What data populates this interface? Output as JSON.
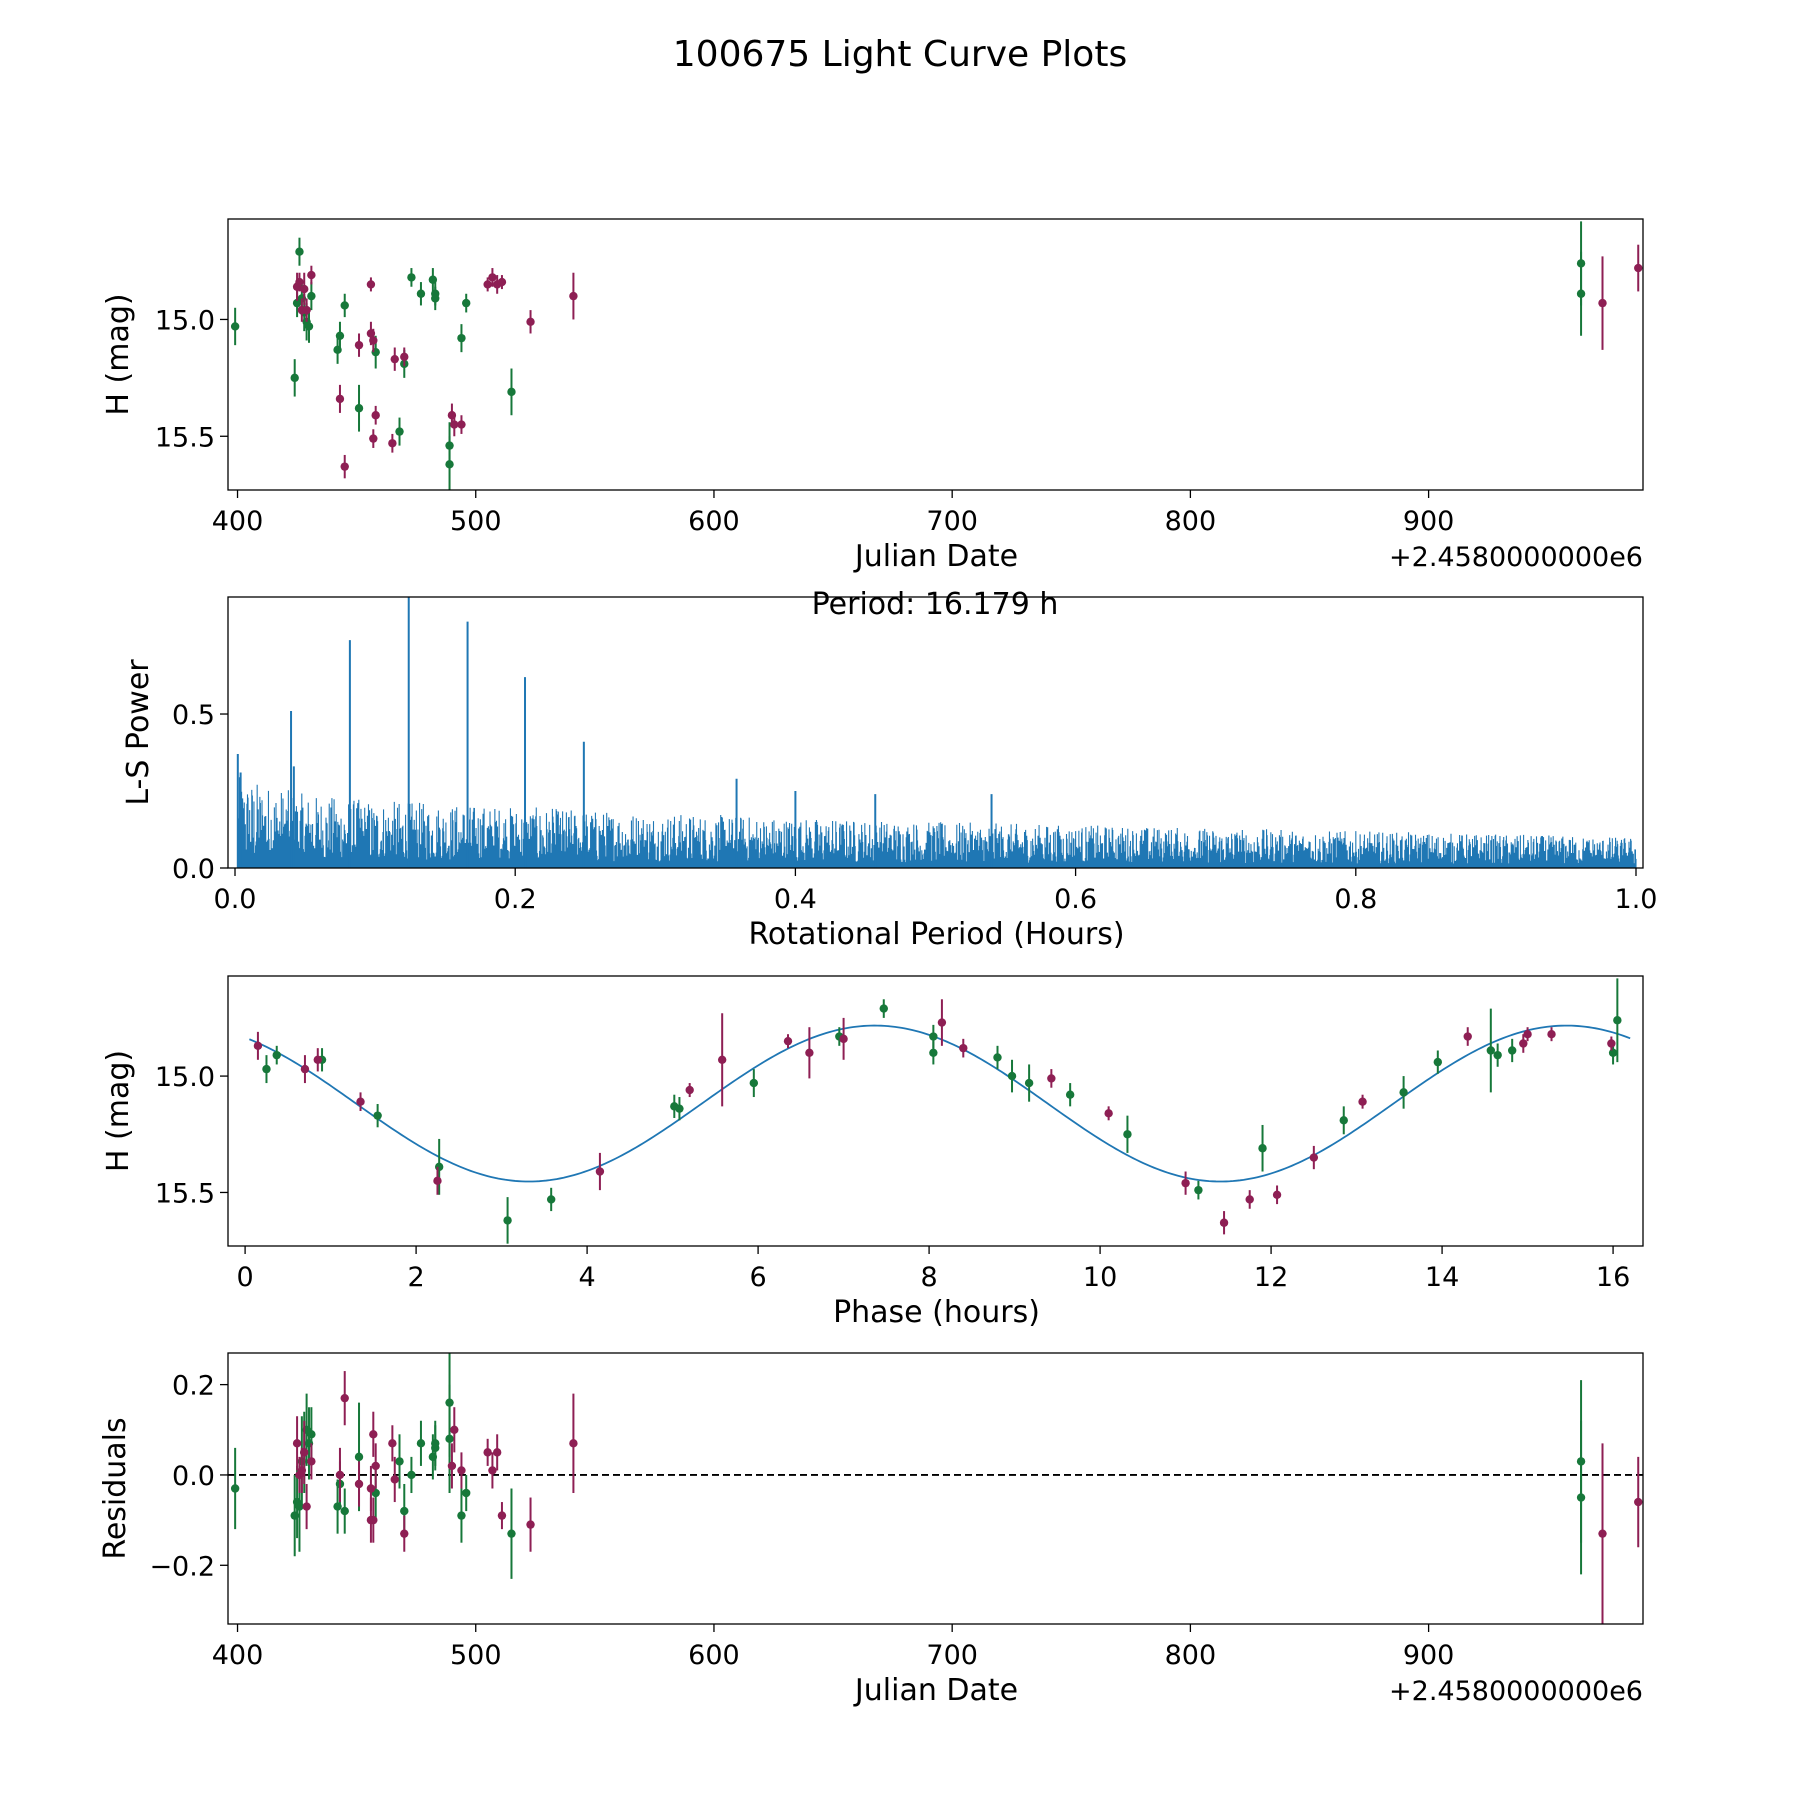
{
  "title": "100675 Light Curve Plots",
  "colors": {
    "green": "#17783a",
    "maroon": "#8e1f54",
    "periodogram": "#1f77b4",
    "fit": "#1f77b4",
    "refline": "#000000"
  },
  "chart_data": [
    {
      "id": "lightcurve",
      "type": "scatter",
      "xlabel": "Julian Date",
      "ylabel": "H (mag)",
      "x_offset_label": "+2.4580000000e6",
      "xlim": [
        396,
        990
      ],
      "ylim": [
        15.73,
        14.57
      ],
      "xticks": [
        400,
        500,
        600,
        700,
        800,
        900
      ],
      "yticks": [
        15.0,
        15.5
      ],
      "xtick_labels": [
        "400",
        "500",
        "600",
        "700",
        "800",
        "900"
      ],
      "ytick_labels": [
        "15.0",
        "15.5"
      ],
      "series": [
        {
          "name": "green",
          "color": "#17783a",
          "points": [
            [
              399,
              15.03,
              0.08
            ],
            [
              424,
              15.25,
              0.08
            ],
            [
              425,
              14.93,
              0.06
            ],
            [
              426,
              14.71,
              0.06
            ],
            [
              427,
              14.91,
              0.07
            ],
            [
              428,
              14.97,
              0.08
            ],
            [
              429,
              15.01,
              0.08
            ],
            [
              430,
              15.03,
              0.07
            ],
            [
              431,
              14.9,
              0.06
            ],
            [
              442,
              15.13,
              0.06
            ],
            [
              443,
              15.07,
              0.06
            ],
            [
              445,
              14.94,
              0.05
            ],
            [
              451,
              15.38,
              0.1
            ],
            [
              458,
              15.14,
              0.07
            ],
            [
              468,
              15.48,
              0.06
            ],
            [
              470,
              15.19,
              0.06
            ],
            [
              473,
              14.82,
              0.04
            ],
            [
              477,
              14.89,
              0.05
            ],
            [
              482,
              14.83,
              0.05
            ],
            [
              483,
              14.89,
              0.05
            ],
            [
              483,
              14.91,
              0.05
            ],
            [
              489,
              15.54,
              0.1
            ],
            [
              489,
              15.62,
              0.12
            ],
            [
              494,
              15.08,
              0.06
            ],
            [
              496,
              14.93,
              0.04
            ],
            [
              515,
              15.31,
              0.1
            ],
            [
              964,
              14.89,
              0.18
            ],
            [
              964,
              14.76,
              0.18
            ]
          ]
        },
        {
          "name": "maroon",
          "color": "#8e1f54",
          "points": [
            [
              425,
              14.86,
              0.06
            ],
            [
              426,
              14.84,
              0.04
            ],
            [
              427,
              14.96,
              0.05
            ],
            [
              428,
              14.87,
              0.07
            ],
            [
              429,
              14.96,
              0.05
            ],
            [
              431,
              14.81,
              0.04
            ],
            [
              443,
              15.34,
              0.06
            ],
            [
              445,
              15.63,
              0.05
            ],
            [
              451,
              15.11,
              0.05
            ],
            [
              456,
              14.85,
              0.03
            ],
            [
              456,
              15.06,
              0.05
            ],
            [
              457,
              15.09,
              0.05
            ],
            [
              457,
              15.51,
              0.04
            ],
            [
              458,
              15.41,
              0.04
            ],
            [
              465,
              15.53,
              0.04
            ],
            [
              466,
              15.17,
              0.05
            ],
            [
              470,
              15.16,
              0.04
            ],
            [
              490,
              15.41,
              0.05
            ],
            [
              491,
              15.45,
              0.05
            ],
            [
              494,
              15.45,
              0.04
            ],
            [
              505,
              14.85,
              0.03
            ],
            [
              507,
              14.82,
              0.04
            ],
            [
              509,
              14.85,
              0.04
            ],
            [
              511,
              14.84,
              0.03
            ],
            [
              523,
              15.01,
              0.05
            ],
            [
              541,
              14.9,
              0.1
            ],
            [
              973,
              14.93,
              0.2
            ],
            [
              988,
              14.78,
              0.1
            ]
          ]
        }
      ]
    },
    {
      "id": "periodogram",
      "type": "line",
      "xlabel": "Rotational Period (Hours)",
      "ylabel": "L-S Power",
      "annotation": "Period: 16.179 h",
      "xlim": [
        -0.005,
        1.005
      ],
      "ylim": [
        0,
        0.88
      ],
      "xticks": [
        0.0,
        0.2,
        0.4,
        0.6,
        0.8,
        1.0
      ],
      "yticks": [
        0.0,
        0.5
      ],
      "xtick_labels": [
        "0.0",
        "0.2",
        "0.4",
        "0.6",
        "0.8",
        "1.0"
      ],
      "ytick_labels": [
        "0.0",
        "0.5"
      ],
      "noise_envelope": [
        [
          0.0,
          0.3
        ],
        [
          0.05,
          0.24
        ],
        [
          0.1,
          0.22
        ],
        [
          0.2,
          0.2
        ],
        [
          0.3,
          0.18
        ],
        [
          0.5,
          0.15
        ],
        [
          0.7,
          0.13
        ],
        [
          1.0,
          0.1
        ]
      ],
      "peaks": [
        [
          0.002,
          0.37
        ],
        [
          0.004,
          0.31
        ],
        [
          0.04,
          0.51
        ],
        [
          0.042,
          0.33
        ],
        [
          0.082,
          0.74
        ],
        [
          0.124,
          0.88
        ],
        [
          0.166,
          0.8
        ],
        [
          0.207,
          0.62
        ],
        [
          0.249,
          0.41
        ],
        [
          0.358,
          0.29
        ],
        [
          0.4,
          0.25
        ],
        [
          0.457,
          0.24
        ],
        [
          0.54,
          0.24
        ]
      ],
      "series": [
        {
          "name": "L-S Power",
          "color": "#1f77b4"
        }
      ]
    },
    {
      "id": "phased",
      "type": "scatter",
      "xlabel": "Phase (hours)",
      "ylabel": "H (mag)",
      "xlim": [
        -0.2,
        16.35
      ],
      "ylim": [
        15.73,
        14.57
      ],
      "xticks": [
        0,
        2,
        4,
        6,
        8,
        10,
        12,
        14,
        16
      ],
      "yticks": [
        15.0,
        15.5
      ],
      "xtick_labels": [
        "0",
        "2",
        "4",
        "6",
        "8",
        "10",
        "12",
        "14",
        "16"
      ],
      "ytick_labels": [
        "15.0",
        "15.5"
      ],
      "fit": {
        "mean": 15.118,
        "amplitude": 0.335,
        "period": 8.0895,
        "peak_phase": 3.32
      },
      "series": [
        {
          "name": "green",
          "color": "#17783a",
          "points": [
            [
              0.25,
              14.97,
              0.06
            ],
            [
              0.37,
              14.91,
              0.04
            ],
            [
              0.9,
              14.93,
              0.05
            ],
            [
              1.55,
              15.17,
              0.05
            ],
            [
              2.27,
              15.39,
              0.12
            ],
            [
              3.07,
              15.62,
              0.1
            ],
            [
              3.58,
              15.53,
              0.05
            ],
            [
              5.02,
              15.13,
              0.05
            ],
            [
              5.08,
              15.14,
              0.05
            ],
            [
              5.95,
              15.03,
              0.06
            ],
            [
              6.95,
              14.83,
              0.04
            ],
            [
              7.47,
              14.71,
              0.04
            ],
            [
              8.05,
              14.9,
              0.05
            ],
            [
              8.05,
              14.83,
              0.05
            ],
            [
              8.8,
              14.92,
              0.05
            ],
            [
              8.97,
              15.0,
              0.07
            ],
            [
              9.17,
              15.03,
              0.08
            ],
            [
              9.65,
              15.08,
              0.05
            ],
            [
              10.32,
              15.25,
              0.08
            ],
            [
              11.15,
              15.49,
              0.04
            ],
            [
              11.9,
              15.31,
              0.1
            ],
            [
              12.85,
              15.19,
              0.06
            ],
            [
              13.55,
              15.07,
              0.07
            ],
            [
              13.95,
              14.94,
              0.05
            ],
            [
              14.57,
              14.89,
              0.18
            ],
            [
              14.65,
              14.91,
              0.05
            ],
            [
              14.82,
              14.89,
              0.05
            ],
            [
              16.0,
              14.9,
              0.05
            ],
            [
              16.05,
              14.76,
              0.18
            ]
          ]
        },
        {
          "name": "maroon",
          "color": "#8e1f54",
          "points": [
            [
              0.15,
              14.87,
              0.06
            ],
            [
              0.7,
              14.97,
              0.06
            ],
            [
              0.85,
              14.93,
              0.05
            ],
            [
              1.35,
              15.11,
              0.04
            ],
            [
              2.25,
              15.45,
              0.06
            ],
            [
              4.15,
              15.41,
              0.08
            ],
            [
              5.2,
              15.06,
              0.03
            ],
            [
              5.58,
              14.93,
              0.2
            ],
            [
              6.35,
              14.85,
              0.03
            ],
            [
              6.6,
              14.9,
              0.11
            ],
            [
              7.0,
              14.84,
              0.09
            ],
            [
              8.15,
              14.77,
              0.1
            ],
            [
              8.4,
              14.88,
              0.04
            ],
            [
              9.43,
              15.01,
              0.04
            ],
            [
              10.1,
              15.16,
              0.03
            ],
            [
              11.0,
              15.46,
              0.05
            ],
            [
              11.45,
              15.63,
              0.05
            ],
            [
              11.75,
              15.53,
              0.04
            ],
            [
              12.07,
              15.51,
              0.04
            ],
            [
              12.5,
              15.35,
              0.05
            ],
            [
              13.07,
              15.11,
              0.03
            ],
            [
              14.3,
              14.83,
              0.04
            ],
            [
              14.95,
              14.86,
              0.04
            ],
            [
              15.0,
              14.82,
              0.03
            ],
            [
              15.28,
              14.82,
              0.03
            ],
            [
              15.98,
              14.86,
              0.03
            ]
          ]
        }
      ]
    },
    {
      "id": "residuals",
      "type": "scatter",
      "xlabel": "Julian Date",
      "ylabel": "Residuals",
      "x_offset_label": "+2.4580000000e6",
      "xlim": [
        396,
        990
      ],
      "ylim": [
        -0.33,
        0.27
      ],
      "xticks": [
        400,
        500,
        600,
        700,
        800,
        900
      ],
      "yticks": [
        -0.2,
        0.0,
        0.2
      ],
      "xtick_labels": [
        "400",
        "500",
        "600",
        "700",
        "800",
        "900"
      ],
      "ytick_labels": [
        "−0.2",
        "0.0",
        "0.2"
      ],
      "reference_line": 0.0,
      "series": [
        {
          "name": "green",
          "color": "#17783a",
          "points": [
            [
              399,
              -0.03,
              0.09
            ],
            [
              424,
              -0.09,
              0.09
            ],
            [
              425,
              -0.06,
              0.08
            ],
            [
              426,
              -0.07,
              0.1
            ],
            [
              427,
              0.03,
              0.1
            ],
            [
              428,
              0.05,
              0.09
            ],
            [
              429,
              0.1,
              0.08
            ],
            [
              430,
              0.07,
              0.08
            ],
            [
              431,
              0.09,
              0.06
            ],
            [
              442,
              -0.07,
              0.06
            ],
            [
              443,
              -0.02,
              0.05
            ],
            [
              445,
              -0.08,
              0.05
            ],
            [
              451,
              0.04,
              0.12
            ],
            [
              458,
              -0.04,
              0.06
            ],
            [
              468,
              0.03,
              0.06
            ],
            [
              470,
              -0.08,
              0.06
            ],
            [
              473,
              0.0,
              0.04
            ],
            [
              477,
              0.07,
              0.05
            ],
            [
              482,
              0.04,
              0.05
            ],
            [
              483,
              0.06,
              0.05
            ],
            [
              483,
              0.07,
              0.05
            ],
            [
              489,
              0.08,
              0.12
            ],
            [
              489,
              0.16,
              0.12
            ],
            [
              494,
              -0.09,
              0.06
            ],
            [
              496,
              -0.04,
              0.04
            ],
            [
              515,
              -0.13,
              0.1
            ],
            [
              964,
              0.03,
              0.18
            ],
            [
              964,
              -0.05,
              0.17
            ]
          ]
        },
        {
          "name": "maroon",
          "color": "#8e1f54",
          "points": [
            [
              425,
              0.07,
              0.06
            ],
            [
              426,
              0.0,
              0.04
            ],
            [
              427,
              0.01,
              0.05
            ],
            [
              428,
              0.05,
              0.07
            ],
            [
              429,
              -0.07,
              0.05
            ],
            [
              431,
              0.03,
              0.04
            ],
            [
              443,
              0.0,
              0.06
            ],
            [
              445,
              0.17,
              0.06
            ],
            [
              451,
              -0.02,
              0.05
            ],
            [
              456,
              -0.1,
              0.05
            ],
            [
              456,
              -0.03,
              0.05
            ],
            [
              457,
              0.09,
              0.05
            ],
            [
              457,
              -0.1,
              0.05
            ],
            [
              458,
              0.02,
              0.05
            ],
            [
              465,
              0.07,
              0.04
            ],
            [
              466,
              -0.01,
              0.05
            ],
            [
              470,
              -0.13,
              0.04
            ],
            [
              490,
              0.02,
              0.05
            ],
            [
              491,
              0.1,
              0.05
            ],
            [
              494,
              0.01,
              0.04
            ],
            [
              505,
              0.05,
              0.03
            ],
            [
              507,
              0.01,
              0.04
            ],
            [
              509,
              0.05,
              0.04
            ],
            [
              511,
              -0.09,
              0.03
            ],
            [
              523,
              -0.11,
              0.06
            ],
            [
              541,
              0.07,
              0.11
            ],
            [
              973,
              -0.13,
              0.2
            ],
            [
              988,
              -0.06,
              0.1
            ]
          ]
        }
      ]
    }
  ]
}
